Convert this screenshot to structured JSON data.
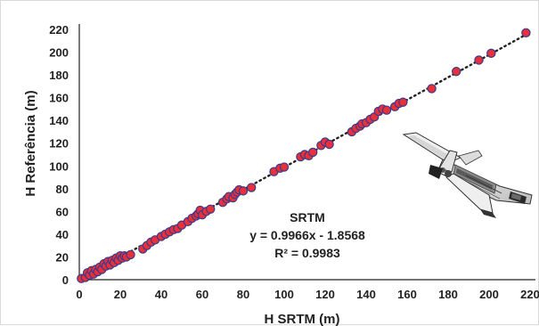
{
  "chart_data": {
    "type": "scatter",
    "xlabel": "H SRTM (m)",
    "ylabel": "H Referência (m)",
    "xlim": [
      0,
      220
    ],
    "ylim": [
      0,
      220
    ],
    "x_ticks": [
      "0",
      "20",
      "40",
      "60",
      "80",
      "100",
      "120",
      "140",
      "160",
      "180",
      "200",
      "220"
    ],
    "y_ticks": [
      "0",
      "20",
      "40",
      "60",
      "80",
      "100",
      "120",
      "140",
      "160",
      "180",
      "200",
      "220"
    ],
    "grid": false,
    "marker_color": "#e8303a",
    "marker_edge_color": "#3a3a8c",
    "trendline_color": "#222222",
    "series": [
      {
        "name": "SRTM",
        "points": [
          [
            1,
            1
          ],
          [
            3,
            2
          ],
          [
            4,
            6
          ],
          [
            5,
            4
          ],
          [
            6,
            8
          ],
          [
            7,
            5
          ],
          [
            8,
            9
          ],
          [
            9,
            7
          ],
          [
            10,
            11
          ],
          [
            11,
            9
          ],
          [
            12,
            14
          ],
          [
            13,
            12
          ],
          [
            14,
            16
          ],
          [
            15,
            13
          ],
          [
            16,
            17
          ],
          [
            17,
            15
          ],
          [
            18,
            19
          ],
          [
            19,
            17
          ],
          [
            20,
            21
          ],
          [
            21,
            19
          ],
          [
            22,
            21
          ],
          [
            23,
            20
          ],
          [
            25,
            22
          ],
          [
            31,
            27
          ],
          [
            33,
            30
          ],
          [
            35,
            33
          ],
          [
            37,
            35
          ],
          [
            40,
            38
          ],
          [
            42,
            40
          ],
          [
            44,
            42
          ],
          [
            46,
            44
          ],
          [
            48,
            45
          ],
          [
            50,
            48
          ],
          [
            53,
            51
          ],
          [
            55,
            54
          ],
          [
            57,
            56
          ],
          [
            58,
            58
          ],
          [
            59,
            61
          ],
          [
            60,
            57
          ],
          [
            62,
            60
          ],
          [
            64,
            62
          ],
          [
            70,
            68
          ],
          [
            72,
            71
          ],
          [
            73,
            73
          ],
          [
            75,
            72
          ],
          [
            76,
            75
          ],
          [
            77,
            77
          ],
          [
            78,
            79
          ],
          [
            80,
            78
          ],
          [
            84,
            81
          ],
          [
            95,
            95
          ],
          [
            98,
            98
          ],
          [
            100,
            99
          ],
          [
            108,
            108
          ],
          [
            110,
            110
          ],
          [
            112,
            109
          ],
          [
            114,
            112
          ],
          [
            118,
            118
          ],
          [
            120,
            121
          ],
          [
            122,
            119
          ],
          [
            133,
            130
          ],
          [
            135,
            133
          ],
          [
            137,
            135
          ],
          [
            138,
            137
          ],
          [
            140,
            138
          ],
          [
            142,
            141
          ],
          [
            144,
            143
          ],
          [
            146,
            148
          ],
          [
            148,
            150
          ],
          [
            150,
            149
          ],
          [
            154,
            152
          ],
          [
            156,
            155
          ],
          [
            158,
            156
          ],
          [
            172,
            168
          ],
          [
            184,
            183
          ],
          [
            195,
            193
          ],
          [
            201,
            199
          ],
          [
            218,
            217
          ]
        ]
      }
    ],
    "trendline": {
      "label": "SRTM",
      "equation": "y = 0.9966x - 1.8568",
      "r_squared": "R² = 0.9983",
      "slope": 0.9966,
      "intercept": -1.8568,
      "x_range": [
        0,
        220
      ],
      "style": "dotted"
    },
    "illustration": "space-shuttle-image"
  }
}
